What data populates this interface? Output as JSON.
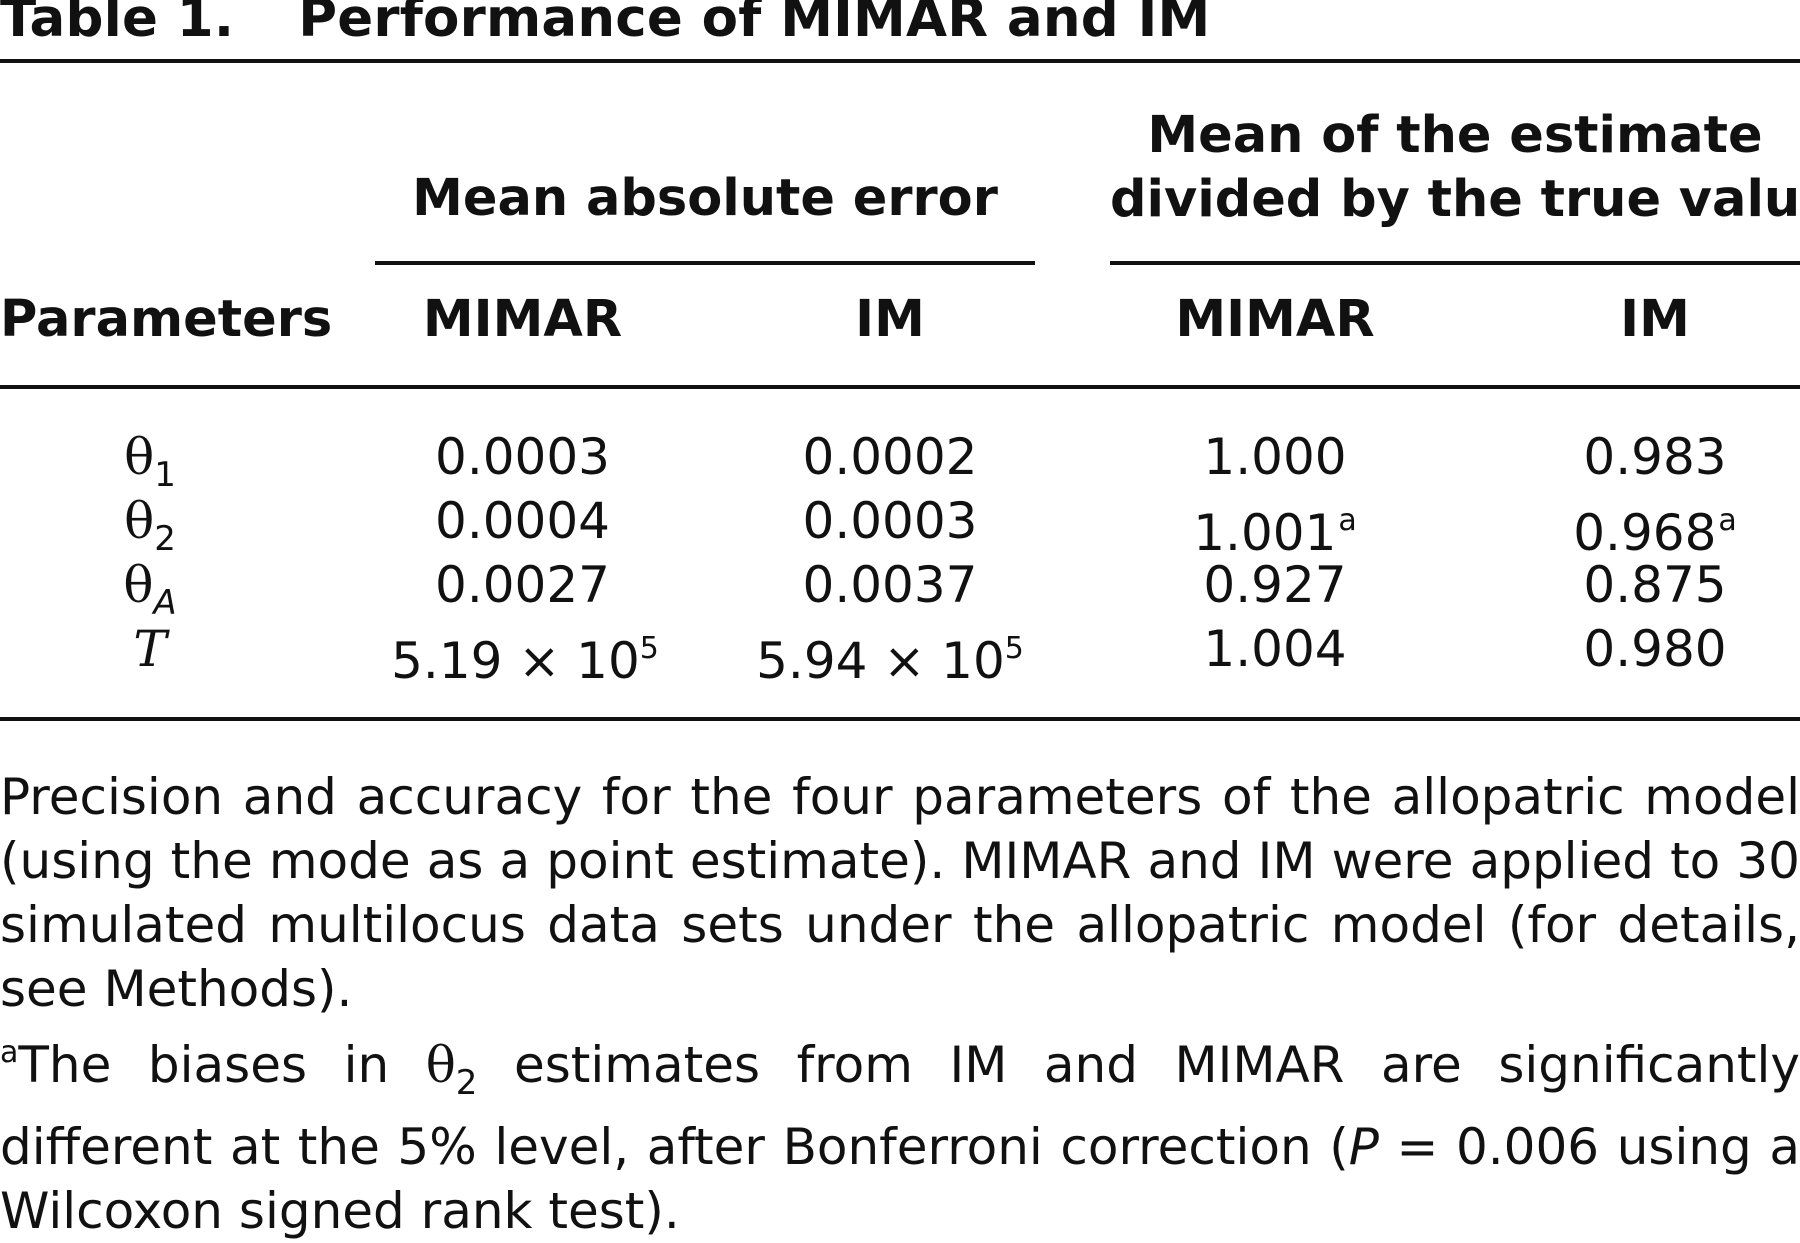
{
  "table": {
    "label": "Table 1.",
    "title": "Performance of MIMAR and IM",
    "group_headers": {
      "mae": "Mean absolute error",
      "ratio_line1": "Mean of the estimate",
      "ratio_line2": "divided by the true value"
    },
    "column_headers": {
      "parameters": "Parameters",
      "mae_mimar": "MIMAR",
      "mae_im": "IM",
      "ratio_mimar": "MIMAR",
      "ratio_im": "IM"
    },
    "rows": [
      {
        "param": "θ",
        "param_sub": "1",
        "mae_mimar": "0.0003",
        "mae_im": "0.0002",
        "ratio_mimar": "1.000",
        "ratio_mimar_note": "",
        "ratio_im": "0.983",
        "ratio_im_note": ""
      },
      {
        "param": "θ",
        "param_sub": "2",
        "mae_mimar": "0.0004",
        "mae_im": "0.0003",
        "ratio_mimar": "1.001",
        "ratio_mimar_note": "a",
        "ratio_im": "0.968",
        "ratio_im_note": "a"
      },
      {
        "param": "θ",
        "param_sub": "A",
        "mae_mimar": "0.0027",
        "mae_im": "0.0037",
        "ratio_mimar": "0.927",
        "ratio_mimar_note": "",
        "ratio_im": "0.875",
        "ratio_im_note": ""
      },
      {
        "param": "T",
        "param_sub": "",
        "mae_mimar_base": "5.19 × 10",
        "mae_mimar_exp": "5",
        "mae_im_base": "5.94 × 10",
        "mae_im_exp": "5",
        "ratio_mimar": "1.004",
        "ratio_mimar_note": "",
        "ratio_im": "0.980",
        "ratio_im_note": ""
      }
    ],
    "caption": "Precision and accuracy for the four parameters of the allopatric model (using the mode as a point estimate). MIMAR and IM were applied to 30 simulated multilocus data sets under the allopatric model (for details, see Methods).",
    "footnote": {
      "marker": "a",
      "text_before": "The biases in ",
      "theta": "θ",
      "theta_sub": "2",
      "text_middle": " estimates from IM and MIMAR are significantly different at the 5% level, after Bonferroni correction (",
      "p_symbol": "P",
      "text_after": " = 0.006 using a Wilcoxon signed rank test)."
    }
  }
}
